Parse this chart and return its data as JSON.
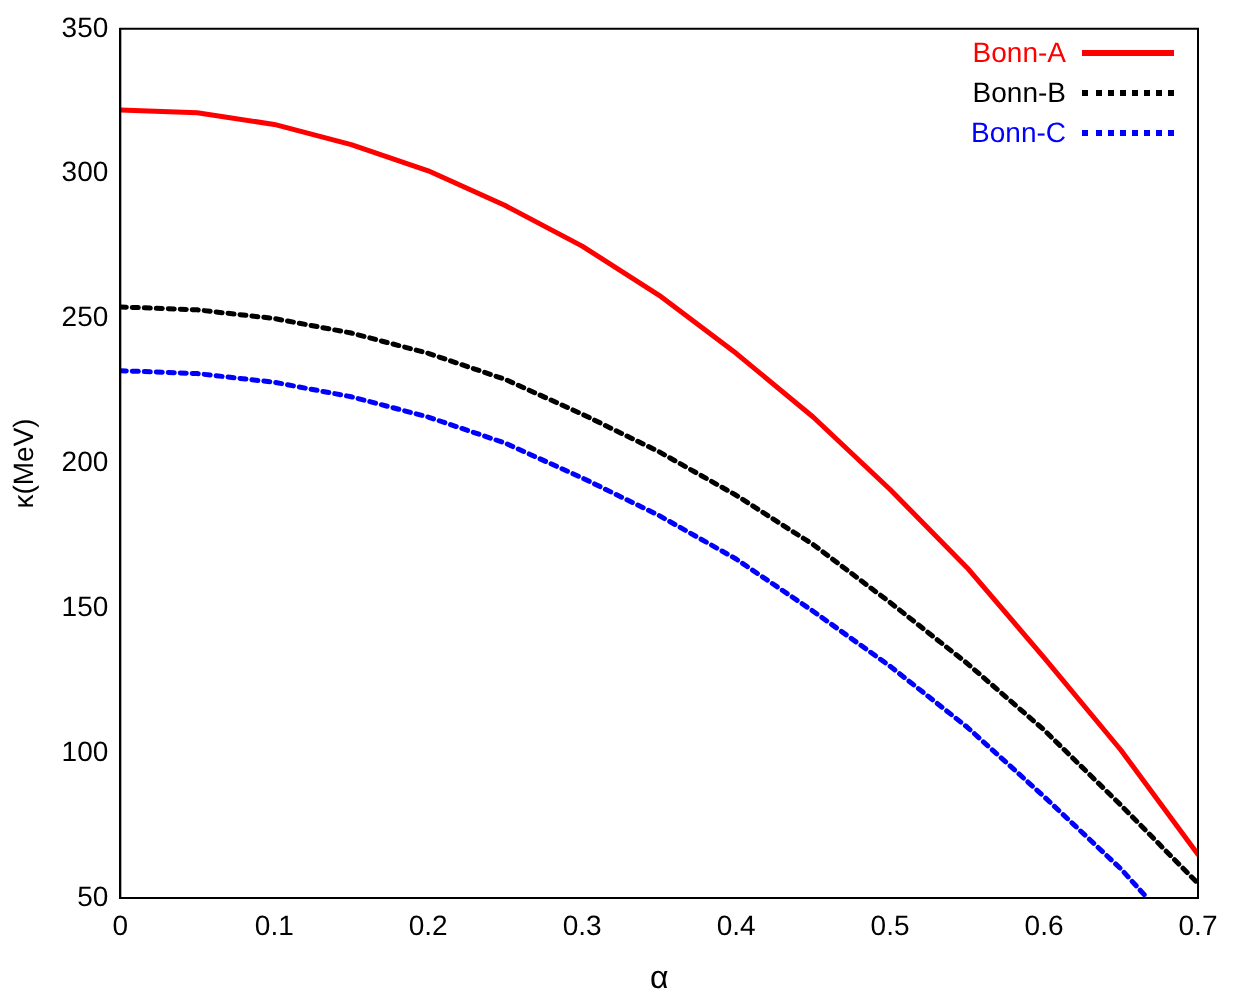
{
  "chart_data": {
    "type": "line",
    "xlabel": "α",
    "ylabel": "κ(MeV)",
    "xlim": [
      0,
      0.7
    ],
    "ylim": [
      50,
      350
    ],
    "xticks": [
      0,
      0.1,
      0.2,
      0.3,
      0.4,
      0.5,
      0.6,
      0.7
    ],
    "yticks": [
      50,
      100,
      150,
      200,
      250,
      300,
      350
    ],
    "legend": "top right",
    "marker": "none",
    "series": [
      {
        "name": "Bonn-A",
        "color": "#ff0000",
        "line_style": "solid",
        "x": [
          0,
          0.05,
          0.1,
          0.15,
          0.2,
          0.25,
          0.3,
          0.35,
          0.4,
          0.45,
          0.5,
          0.55,
          0.6,
          0.65,
          0.7
        ],
        "values": [
          322,
          321,
          317,
          310,
          301,
          289,
          275,
          258,
          238,
          216,
          191,
          164,
          133,
          101,
          65
        ]
      },
      {
        "name": "Bonn-B",
        "color": "#000000",
        "line_style": "dotted",
        "x": [
          0,
          0.05,
          0.1,
          0.15,
          0.2,
          0.25,
          0.3,
          0.35,
          0.4,
          0.45,
          0.5,
          0.55,
          0.6,
          0.65,
          0.7
        ],
        "values": [
          254,
          253,
          250,
          245,
          238,
          229,
          217,
          204,
          189,
          172,
          152,
          131,
          108,
          82,
          55
        ]
      },
      {
        "name": "Bonn-C",
        "color": "#0000ff",
        "line_style": "dotted",
        "x": [
          0,
          0.05,
          0.1,
          0.15,
          0.2,
          0.25,
          0.3,
          0.35,
          0.4,
          0.45,
          0.5,
          0.55,
          0.6,
          0.65,
          0.667
        ],
        "values": [
          232,
          231,
          228,
          223,
          216,
          207,
          195,
          182,
          167,
          149,
          130,
          109,
          85,
          60,
          50
        ]
      }
    ]
  }
}
